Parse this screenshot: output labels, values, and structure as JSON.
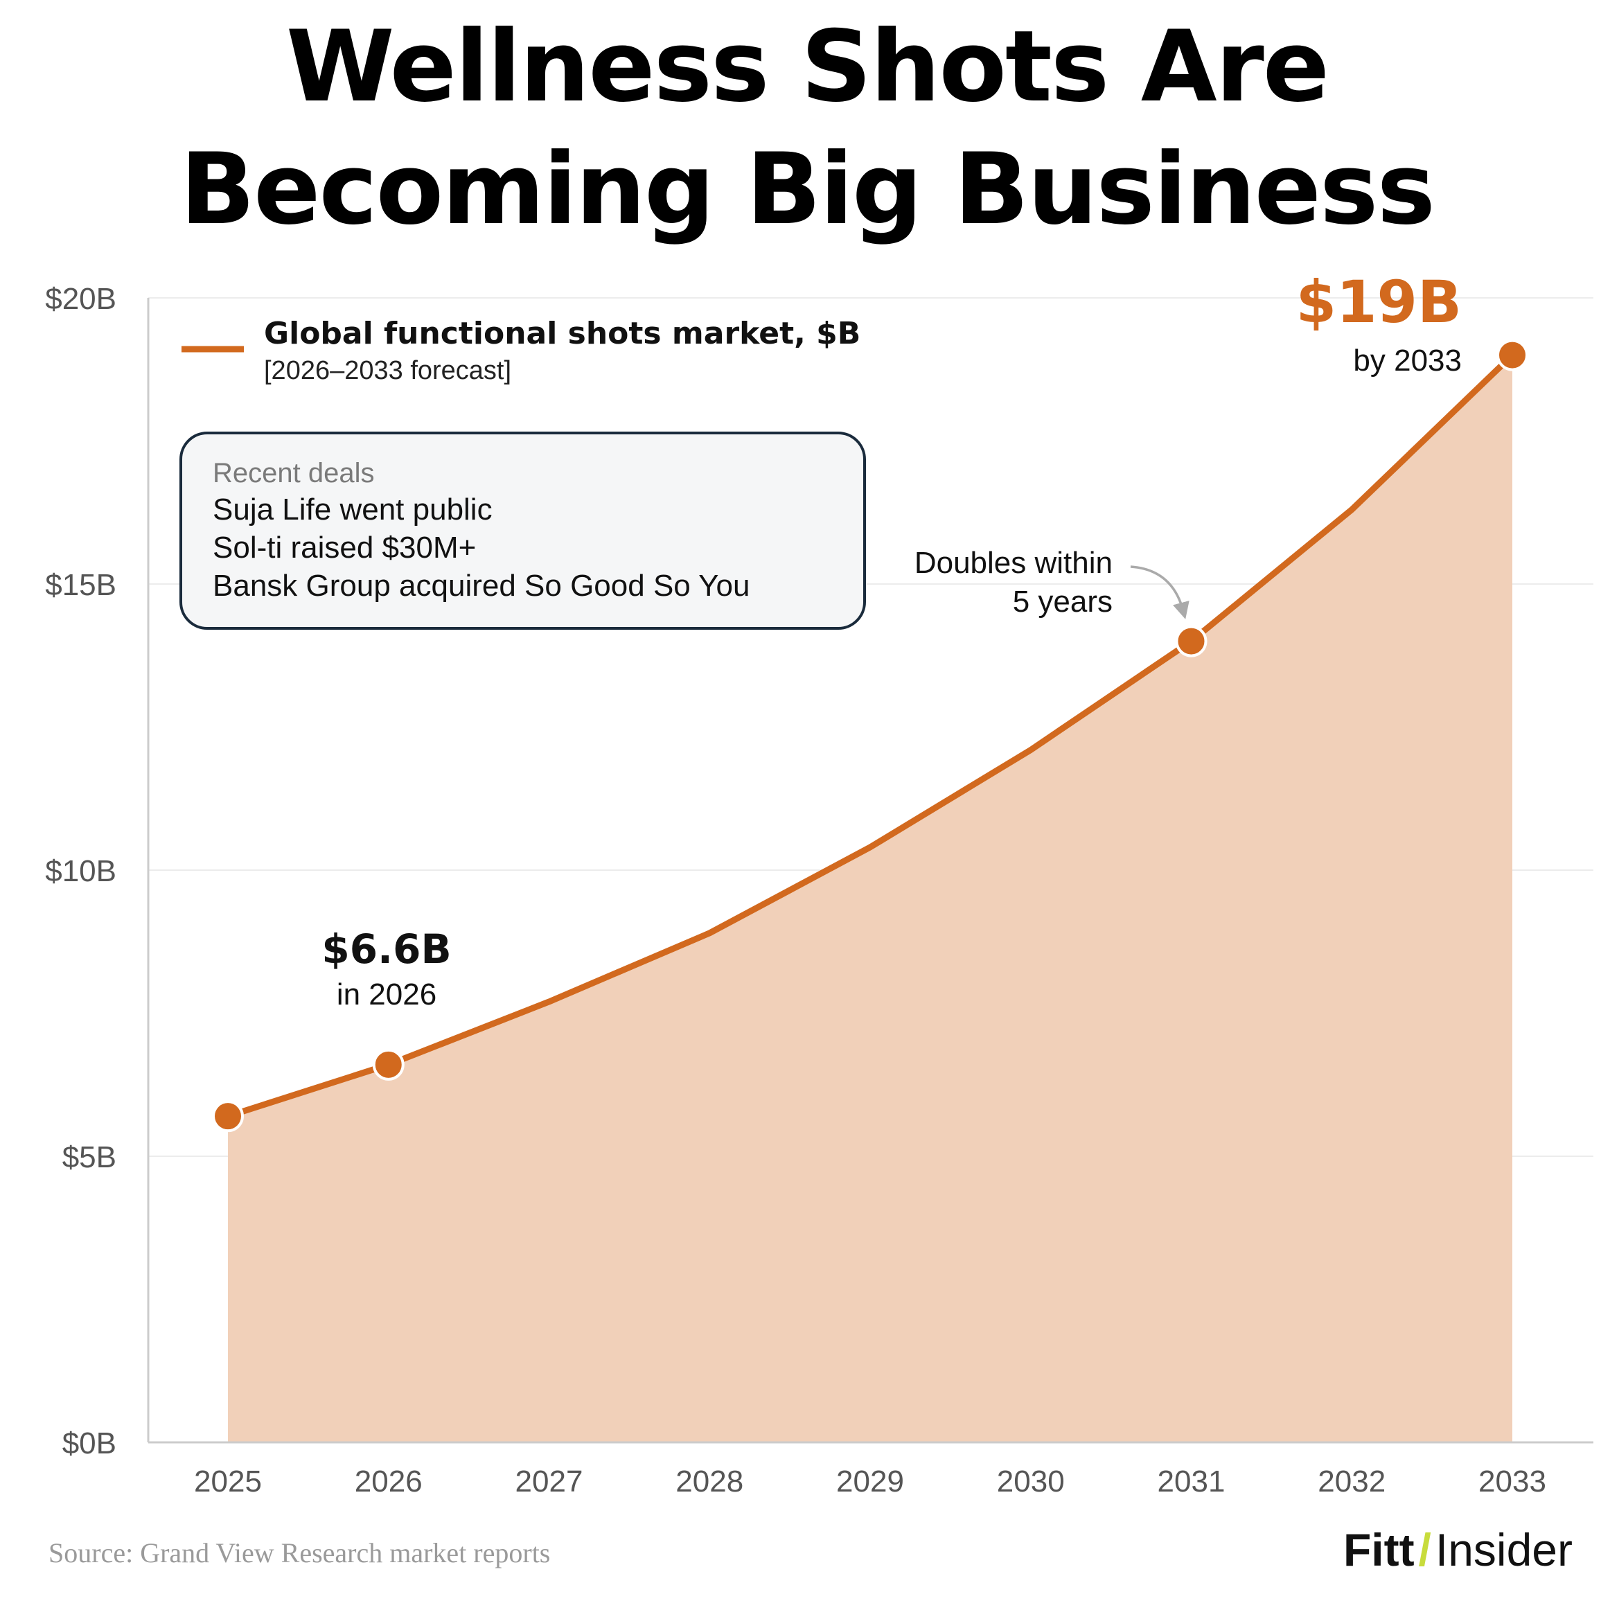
{
  "title_lines": [
    "Wellness Shots Are",
    "Becoming Big Business"
  ],
  "legend": {
    "title": "Global functional shots market, $B",
    "subtitle": "[2026–2033 forecast]"
  },
  "deals": {
    "heading": "Recent deals",
    "items": [
      "Suja Life went public",
      "Sol-ti raised $30M+",
      "Bansk Group acquired So Good So You"
    ]
  },
  "annotations": {
    "a2026": {
      "value": "$6.6B",
      "label": "in 2026"
    },
    "a2031": {
      "line1": "Doubles within",
      "line2": "5 years"
    },
    "a2033": {
      "value": "$19B",
      "label": "by 2033"
    }
  },
  "source": "Source: Grand View Research market reports",
  "brand": {
    "part1": "Fitt",
    "slash": "/",
    "part2": "Insider"
  },
  "colors": {
    "line": "#d2691e",
    "area": "#f1d0b9",
    "brand_slash": "#c8dc3c",
    "box_border": "#1a2b3c",
    "box_fill": "#f5f6f7"
  },
  "chart_data": {
    "type": "area",
    "x": [
      2025,
      2026,
      2027,
      2028,
      2029,
      2030,
      2031,
      2032,
      2033
    ],
    "series": [
      {
        "name": "Global functional shots market, $B",
        "values": [
          5.7,
          6.6,
          7.7,
          8.9,
          10.4,
          12.1,
          14.0,
          16.3,
          19.0
        ]
      }
    ],
    "marked_points": [
      2025,
      2026,
      2031,
      2033
    ],
    "xticks": [
      "2025",
      "2026",
      "2027",
      "2028",
      "2029",
      "2030",
      "2031",
      "2032",
      "2033"
    ],
    "yticks": [
      {
        "value": 0,
        "label": "$0B"
      },
      {
        "value": 5,
        "label": "$5B"
      },
      {
        "value": 10,
        "label": "$10B"
      },
      {
        "value": 15,
        "label": "$15B"
      },
      {
        "value": 20,
        "label": "$20B"
      }
    ],
    "ylim": [
      0,
      20
    ],
    "grid": true,
    "legend_position": "top-left"
  }
}
